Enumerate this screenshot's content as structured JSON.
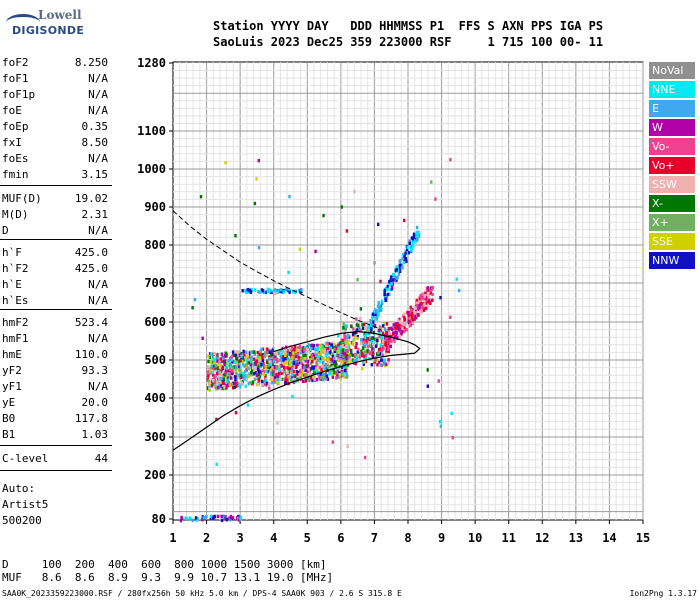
{
  "logo": {
    "line1": "Lowell",
    "line2": "DIGISONDE"
  },
  "header": {
    "line1": "Station YYYY DAY   DDD HHMMSS P1  FFS S AXN PPS IGA PS",
    "line2": "SaoLuis 2023 Dec25 359 223000 RSF     1 715 100 00- 11"
  },
  "params": [
    {
      "name": "foF2",
      "value": "8.250"
    },
    {
      "name": "foF1",
      "value": "N/A"
    },
    {
      "name": "foF1p",
      "value": "N/A"
    },
    {
      "name": "foE",
      "value": "N/A"
    },
    {
      "name": "foEp",
      "value": "0.35"
    },
    {
      "name": "fxI",
      "value": "8.50"
    },
    {
      "name": "foEs",
      "value": "N/A"
    },
    {
      "name": "fmin",
      "value": "3.15"
    },
    {
      "name": "MUF(D)",
      "value": "19.02"
    },
    {
      "name": "M(D)",
      "value": "2.31"
    },
    {
      "name": "D",
      "value": "N/A"
    },
    {
      "name": "h`F",
      "value": "425.0"
    },
    {
      "name": "h`F2",
      "value": "425.0"
    },
    {
      "name": "h`E",
      "value": "N/A"
    },
    {
      "name": "h`Es",
      "value": "N/A"
    },
    {
      "name": "hmF2",
      "value": "523.4"
    },
    {
      "name": "hmF1",
      "value": "N/A"
    },
    {
      "name": "hmE",
      "value": "110.0"
    },
    {
      "name": "yF2",
      "value": "93.3"
    },
    {
      "name": "yF1",
      "value": "N/A"
    },
    {
      "name": "yE",
      "value": "20.0"
    },
    {
      "name": "B0",
      "value": "117.8"
    },
    {
      "name": "B1",
      "value": "1.03"
    },
    {
      "name": "C-level",
      "value": "44"
    }
  ],
  "auto": {
    "line1": "Auto:",
    "line2": "Artist5",
    "line3": "500200"
  },
  "legend": [
    {
      "label": "NoVal",
      "color": "#909090"
    },
    {
      "label": "NNE",
      "color": "#00e8f0"
    },
    {
      "label": "E",
      "color": "#40a8f0"
    },
    {
      "label": "W",
      "color": "#b000a8"
    },
    {
      "label": "Vo-",
      "color": "#f04090"
    },
    {
      "label": "Vo+",
      "color": "#e8002a"
    },
    {
      "label": "SSW",
      "color": "#f0b0b0"
    },
    {
      "label": "X-",
      "color": "#007800"
    },
    {
      "label": "X+",
      "color": "#70b060"
    },
    {
      "label": "SSE",
      "color": "#d0d000"
    },
    {
      "label": "NNW",
      "color": "#1010c0"
    }
  ],
  "muf_table": {
    "line1": "D     100  200  400  600  800 1000 1500 3000 [km]",
    "line2": "MUF   8.6  8.6  8.9  9.3  9.9 10.7 13.1 19.0 [MHz]"
  },
  "footer": "SAA0K_2023359223000.RSF / 280fx256h 50 kHz 5.0 km / DPS-4 SAA0K 903 / 2.6 S 315.8 E",
  "version": "Ion2Png 1.3.17",
  "chart_data": {
    "type": "scatter",
    "x_ticks": [
      "1",
      "2",
      "3",
      "4",
      "5",
      "6",
      "7",
      "8",
      "9",
      "10",
      "11",
      "12",
      "13",
      "14",
      "15"
    ],
    "y_ticks": [
      "80",
      "200",
      "300",
      "400",
      "500",
      "600",
      "700",
      "800",
      "900",
      "1000",
      "1100",
      "1280"
    ],
    "xlim": [
      1,
      15
    ],
    "ylim": [
      80,
      1280
    ],
    "grid": true,
    "fill_dashed_curve": [
      [
        1,
        890
      ],
      [
        1.5,
        850
      ],
      [
        2,
        815
      ],
      [
        2.5,
        785
      ],
      [
        3,
        755
      ],
      [
        3.5,
        730
      ],
      [
        4,
        706
      ],
      [
        4.5,
        684
      ],
      [
        5,
        664
      ],
      [
        5.5,
        644
      ],
      [
        6,
        624
      ],
      [
        6.5,
        605
      ],
      [
        7,
        588
      ],
      [
        7.2,
        580
      ]
    ],
    "fill_solid_curve": [
      [
        1,
        265
      ],
      [
        1.5,
        295
      ],
      [
        2,
        325
      ],
      [
        2.5,
        355
      ],
      [
        3,
        380
      ],
      [
        3.5,
        403
      ],
      [
        4,
        422
      ],
      [
        4.5,
        440
      ],
      [
        5,
        455
      ],
      [
        5.5,
        470
      ],
      [
        6,
        483
      ],
      [
        6.5,
        495
      ],
      [
        7,
        505
      ],
      [
        7.5,
        512
      ],
      [
        8,
        516
      ],
      [
        8.2,
        518
      ],
      [
        8.35,
        530
      ],
      [
        8.2,
        540
      ],
      [
        8,
        548
      ],
      [
        7.5,
        560
      ],
      [
        7,
        570
      ],
      [
        6.5,
        575
      ],
      [
        6,
        570
      ],
      [
        5.5,
        560
      ],
      [
        5,
        548
      ],
      [
        4.5,
        536
      ],
      [
        4,
        522
      ]
    ],
    "points": {
      "main_cloud": {
        "x": [
          2,
          6.2
        ],
        "y": [
          420,
          580
        ]
      },
      "mid_cloud": {
        "x": [
          6,
          7.4
        ],
        "y": [
          470,
          600
        ]
      },
      "f2_rise": {
        "x": [
          7.2,
          8.7
        ],
        "y": [
          540,
          690
        ]
      },
      "upper_trace": {
        "x": [
          6.8,
          8.3
        ],
        "y": [
          590,
          850
        ]
      },
      "horiz_trace": {
        "x": [
          3,
          4.8
        ],
        "y": [
          675,
          690
        ]
      },
      "low_trace": {
        "x": [
          1.2,
          3
        ],
        "y": [
          80,
          95
        ]
      }
    }
  }
}
